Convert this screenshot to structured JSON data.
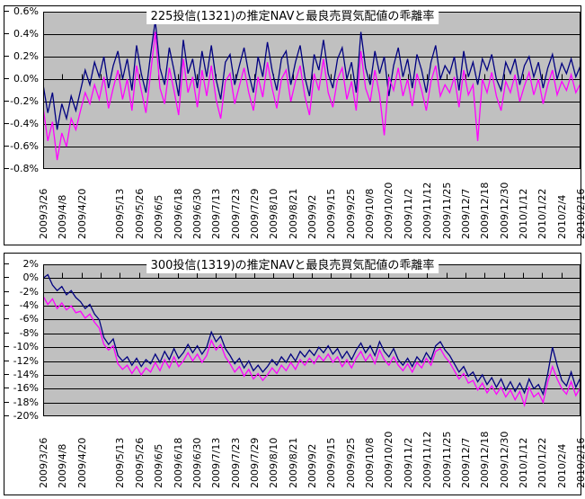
{
  "palette": {
    "plot_background": "#c0c0c0",
    "grid_color": "#000000",
    "chart_background": "#ffffff",
    "series_navy": "#000080",
    "series_magenta": "#ff00ff"
  },
  "chart_data": [
    {
      "type": "line",
      "title": "225投信(1321)の推定NAVと最良売買気配値の乖離率",
      "xlabel": "",
      "ylabel": "",
      "grid": true,
      "legend": "none",
      "ylim": [
        -0.8,
        0.6
      ],
      "yticks": [
        0.6,
        0.4,
        0.2,
        0.0,
        -0.2,
        -0.4,
        -0.6,
        -0.8
      ],
      "ytick_labels": [
        "0.6%",
        "0.4%",
        "0.2%",
        "0.0%",
        "-0.2%",
        "-0.4%",
        "-0.6%",
        "-0.8%"
      ],
      "axis_cross_y": 0,
      "categories": [
        "2009/3/26",
        "2009/4/8",
        "2009/4/20",
        "",
        "2009/5/13",
        "2009/5/26",
        "2009/6/5",
        "2009/6/18",
        "2009/6/30",
        "2009/7/13",
        "2009/7/23",
        "2009/7/29",
        "2009/8/10",
        "2009/8/21",
        "2009/9/2",
        "2009/9/15",
        "2009/9/25",
        "2009/10/8",
        "2009/10/20",
        "2009/11/2",
        "2009/11/12",
        "2009/11/25",
        "2009/12/7",
        "2009/12/18",
        "2009/12/30",
        "2010/1/12",
        "2010/1/22",
        "2010/2/4",
        "2010/2/16"
      ],
      "series": [
        {
          "name": "deviation-navy",
          "color": "#000080",
          "values": [
            -0.05,
            -0.3,
            -0.12,
            -0.45,
            -0.22,
            -0.35,
            -0.15,
            -0.28,
            -0.1,
            0.08,
            -0.05,
            0.15,
            0.02,
            0.2,
            -0.08,
            0.12,
            0.25,
            0.0,
            0.18,
            -0.1,
            0.3,
            0.05,
            -0.12,
            0.22,
            0.52,
            0.1,
            -0.05,
            0.28,
            0.08,
            -0.15,
            0.35,
            0.05,
            0.18,
            -0.08,
            0.25,
            0.02,
            0.3,
            0.0,
            -0.18,
            0.15,
            0.22,
            -0.05,
            0.12,
            0.28,
            0.05,
            -0.12,
            0.2,
            0.02,
            0.33,
            0.08,
            -0.1,
            0.18,
            0.25,
            -0.05,
            0.15,
            0.3,
            0.02,
            -0.15,
            0.22,
            0.08,
            0.35,
            0.05,
            -0.08,
            0.18,
            0.28,
            0.0,
            0.15,
            -0.12,
            0.42,
            0.1,
            -0.05,
            0.25,
            0.05,
            0.2,
            -0.15,
            0.12,
            0.28,
            0.02,
            0.18,
            -0.08,
            0.22,
            0.08,
            -0.12,
            0.15,
            0.3,
            0.0,
            0.12,
            0.05,
            0.2,
            -0.1,
            0.25,
            0.02,
            0.15,
            -0.05,
            0.18,
            0.08,
            0.22,
            0.0,
            -0.1,
            0.15,
            0.05,
            0.18,
            -0.05,
            0.12,
            0.2,
            0.02,
            0.15,
            -0.08,
            0.1,
            0.22,
            0.0,
            0.14,
            0.05,
            0.18,
            0.02,
            0.12
          ]
        },
        {
          "name": "deviation-magenta",
          "color": "#ff00ff",
          "values": [
            -0.25,
            -0.55,
            -0.38,
            -0.72,
            -0.48,
            -0.6,
            -0.35,
            -0.45,
            -0.28,
            -0.12,
            -0.22,
            -0.05,
            -0.18,
            0.02,
            -0.26,
            -0.08,
            0.08,
            -0.18,
            0.0,
            -0.28,
            0.12,
            -0.1,
            -0.3,
            0.05,
            0.42,
            -0.08,
            -0.22,
            0.1,
            -0.1,
            -0.32,
            0.18,
            -0.12,
            0.02,
            -0.25,
            0.08,
            -0.15,
            0.12,
            -0.18,
            -0.35,
            -0.02,
            0.05,
            -0.22,
            -0.06,
            0.1,
            -0.12,
            -0.28,
            0.02,
            -0.16,
            0.15,
            -0.08,
            -0.26,
            0.0,
            0.08,
            -0.2,
            -0.02,
            0.12,
            -0.15,
            -0.32,
            0.05,
            -0.1,
            0.18,
            -0.12,
            -0.25,
            0.0,
            0.1,
            -0.18,
            -0.02,
            -0.28,
            0.25,
            -0.08,
            -0.2,
            0.08,
            -0.14,
            -0.5,
            0.02,
            -0.1,
            0.1,
            -0.15,
            0.0,
            -0.24,
            0.05,
            -0.1,
            -0.28,
            -0.02,
            0.12,
            -0.15,
            -0.05,
            -0.12,
            0.02,
            -0.25,
            0.08,
            -0.14,
            -0.05,
            -0.55,
            0.0,
            -0.12,
            0.06,
            -0.15,
            -0.28,
            -0.02,
            -0.12,
            0.04,
            -0.2,
            -0.06,
            0.06,
            -0.14,
            0.0,
            -0.22,
            -0.05,
            0.08,
            -0.14,
            -0.02,
            -0.1,
            0.04,
            -0.12,
            -0.04
          ]
        }
      ]
    },
    {
      "type": "line",
      "title": "300投信(1319)の推定NAVと最良売買気配値の乖離率",
      "xlabel": "",
      "ylabel": "",
      "grid": true,
      "legend": "none",
      "ylim": [
        -20,
        2
      ],
      "yticks": [
        2,
        0,
        -2,
        -4,
        -6,
        -8,
        -10,
        -12,
        -14,
        -16,
        -18,
        -20
      ],
      "ytick_labels": [
        "2%",
        "0%",
        "-2%",
        "-4%",
        "-6%",
        "-8%",
        "-10%",
        "-12%",
        "-14%",
        "-16%",
        "-18%",
        "-20%"
      ],
      "axis_cross_y": 0,
      "categories": [
        "2009/3/26",
        "2009/4/8",
        "2009/4/20",
        "",
        "2009/5/13",
        "2009/5/26",
        "2009/6/5",
        "2009/6/18",
        "2009/6/30",
        "2009/7/13",
        "2009/7/23",
        "2009/7/29",
        "2009/8/10",
        "2009/8/21",
        "2009/9/2",
        "2009/9/15",
        "2009/9/25",
        "2009/10/8",
        "2009/10/20",
        "2009/11/2",
        "2009/11/12",
        "2009/11/25",
        "2009/12/7",
        "2009/12/18",
        "2009/12/30",
        "2010/1/12",
        "2010/1/22",
        "2010/2/4",
        "2010/2/16"
      ],
      "series": [
        {
          "name": "deviation-navy",
          "color": "#000080",
          "values": [
            0.0,
            0.5,
            -1.0,
            -1.8,
            -1.2,
            -2.4,
            -1.8,
            -2.8,
            -3.4,
            -4.4,
            -3.8,
            -5.2,
            -6.0,
            -8.6,
            -9.6,
            -8.8,
            -11.2,
            -12.0,
            -11.4,
            -12.6,
            -11.6,
            -12.8,
            -11.8,
            -12.4,
            -11.0,
            -12.2,
            -10.6,
            -11.8,
            -10.2,
            -11.6,
            -10.8,
            -9.6,
            -10.8,
            -9.8,
            -11.0,
            -10.0,
            -7.8,
            -9.2,
            -8.4,
            -10.2,
            -11.2,
            -12.4,
            -11.6,
            -13.0,
            -12.0,
            -13.4,
            -12.6,
            -13.6,
            -12.8,
            -11.8,
            -12.6,
            -11.4,
            -12.2,
            -11.0,
            -12.0,
            -10.6,
            -11.4,
            -10.4,
            -11.2,
            -10.0,
            -10.8,
            -9.8,
            -11.0,
            -10.2,
            -11.6,
            -10.6,
            -11.8,
            -10.4,
            -9.4,
            -10.8,
            -9.8,
            -11.2,
            -9.2,
            -10.6,
            -11.4,
            -10.2,
            -11.8,
            -12.6,
            -11.6,
            -12.8,
            -11.4,
            -12.2,
            -10.8,
            -11.8,
            -9.8,
            -9.2,
            -10.4,
            -11.2,
            -12.4,
            -13.6,
            -12.8,
            -14.2,
            -13.6,
            -15.0,
            -14.0,
            -15.4,
            -14.4,
            -15.8,
            -14.6,
            -16.2,
            -15.0,
            -16.4,
            -15.2,
            -16.6,
            -14.6,
            -16.0,
            -15.4,
            -16.8,
            -13.8,
            -10.0,
            -12.6,
            -14.8,
            -15.6,
            -13.6,
            -15.8,
            -14.4
          ]
        },
        {
          "name": "deviation-magenta",
          "color": "#ff00ff",
          "values": [
            -2.6,
            -3.8,
            -3.0,
            -4.4,
            -3.6,
            -4.6,
            -4.0,
            -5.0,
            -4.8,
            -5.8,
            -5.2,
            -6.4,
            -7.2,
            -9.6,
            -10.4,
            -9.8,
            -12.4,
            -13.2,
            -12.6,
            -13.8,
            -12.8,
            -14.0,
            -13.0,
            -13.6,
            -12.2,
            -13.4,
            -11.8,
            -13.0,
            -11.4,
            -12.8,
            -12.0,
            -10.8,
            -12.0,
            -11.0,
            -12.2,
            -11.2,
            -9.0,
            -10.4,
            -9.6,
            -11.4,
            -12.4,
            -13.6,
            -12.8,
            -14.2,
            -13.2,
            -14.6,
            -13.8,
            -14.8,
            -14.0,
            -13.0,
            -13.8,
            -12.6,
            -13.4,
            -12.2,
            -13.2,
            -11.8,
            -12.6,
            -11.6,
            -12.4,
            -11.2,
            -12.0,
            -11.0,
            -12.2,
            -11.4,
            -12.8,
            -11.8,
            -13.0,
            -11.6,
            -10.6,
            -12.0,
            -11.0,
            -12.4,
            -10.4,
            -11.8,
            -12.6,
            -11.4,
            -12.6,
            -13.4,
            -12.4,
            -13.6,
            -12.2,
            -13.0,
            -11.6,
            -12.6,
            -10.6,
            -10.2,
            -11.4,
            -12.2,
            -13.4,
            -14.6,
            -13.8,
            -15.2,
            -14.8,
            -16.2,
            -15.2,
            -16.6,
            -15.6,
            -16.8,
            -15.8,
            -17.2,
            -16.2,
            -17.6,
            -16.4,
            -18.4,
            -15.8,
            -17.2,
            -16.6,
            -18.0,
            -15.0,
            -12.8,
            -14.6,
            -16.0,
            -16.8,
            -15.0,
            -17.0,
            -15.8
          ]
        }
      ]
    }
  ]
}
